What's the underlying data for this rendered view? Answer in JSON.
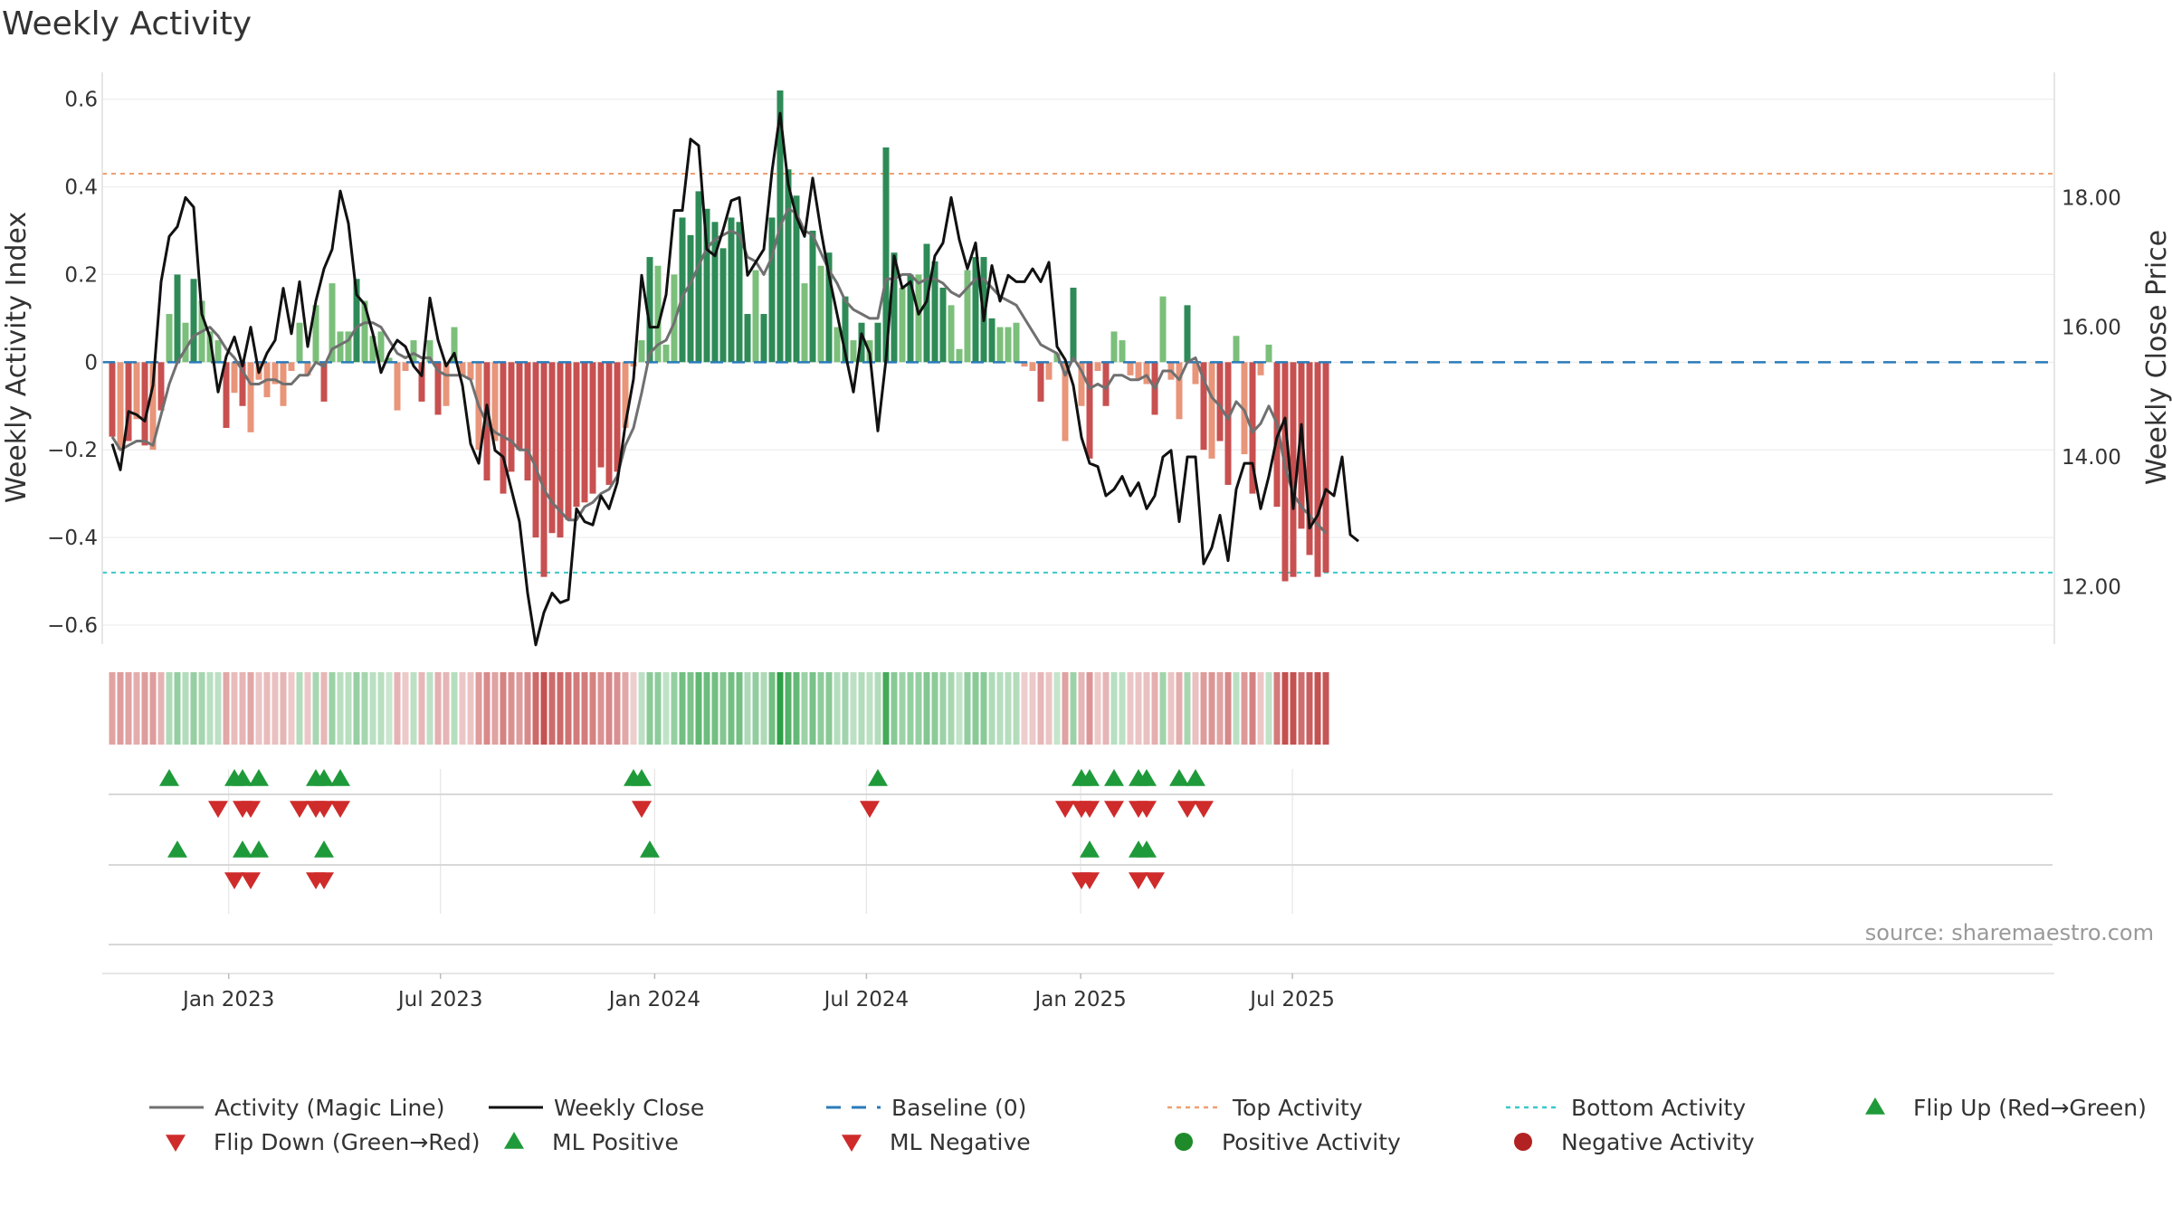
{
  "chart_data": {
    "type": "bar+line",
    "title": "Weekly Activity",
    "ylabel": "Weekly Activity Index",
    "y2label": "Weekly Close Price",
    "ylim": [
      -0.66,
      0.62
    ],
    "y2lim": [
      11.0,
      19.65
    ],
    "ytick_labels": [
      "0.6",
      "0.4",
      "0.2",
      "0",
      "−0.2",
      "−0.4",
      "−0.6"
    ],
    "ytick_values": [
      0.6,
      0.4,
      0.2,
      0.0,
      -0.2,
      -0.4,
      -0.6
    ],
    "y2tick_labels": [
      "18.00",
      "16.00",
      "14.00",
      "12.00"
    ],
    "y2tick_values": [
      18.0,
      16.0,
      14.0,
      12.0
    ],
    "xtick_labels": [
      "Jan 2023",
      "Jul 2023",
      "Jan 2024",
      "Jul 2024",
      "Jan 2025",
      "Jul 2025"
    ],
    "xtick_weeks": [
      14.3,
      40.3,
      66.6,
      92.6,
      118.9,
      144.9
    ],
    "top_activity": 0.43,
    "bottom_activity": -0.48,
    "baseline": 0,
    "activity": [
      -0.17,
      -0.2,
      -0.18,
      -0.13,
      -0.19,
      -0.2,
      -0.11,
      0.11,
      0.2,
      0.09,
      0.19,
      0.14,
      0.07,
      0.05,
      -0.15,
      -0.07,
      -0.1,
      -0.16,
      -0.04,
      -0.08,
      -0.05,
      -0.1,
      -0.02,
      0.09,
      -0.03,
      0.13,
      -0.09,
      0.18,
      0.07,
      0.07,
      0.19,
      0.14,
      0.06,
      0.07,
      0.01,
      -0.11,
      -0.02,
      0.05,
      -0.09,
      0.05,
      -0.12,
      -0.1,
      0.08,
      -0.03,
      -0.04,
      -0.2,
      -0.27,
      -0.18,
      -0.3,
      -0.25,
      -0.2,
      -0.27,
      -0.4,
      -0.49,
      -0.39,
      -0.4,
      -0.36,
      -0.33,
      -0.32,
      -0.3,
      -0.24,
      -0.28,
      -0.25,
      -0.15,
      -0.01,
      0.05,
      0.24,
      0.22,
      0.04,
      0.2,
      0.33,
      0.29,
      0.39,
      0.35,
      0.32,
      0.26,
      0.33,
      0.32,
      0.11,
      0.21,
      0.11,
      0.33,
      0.62,
      0.44,
      0.38,
      0.18,
      0.3,
      0.22,
      0.25,
      0.08,
      0.15,
      0.05,
      0.09,
      0.05,
      0.09,
      0.49,
      0.25,
      0.17,
      0.2,
      0.2,
      0.27,
      0.23,
      0.17,
      0.13,
      0.03,
      0.21,
      0.24,
      0.24,
      0.1,
      0.08,
      0.08,
      0.09,
      -0.01,
      -0.02,
      -0.09,
      -0.04,
      0.02,
      -0.18,
      0.17,
      -0.1,
      -0.22,
      -0.02,
      -0.1,
      0.07,
      0.05,
      -0.03,
      -0.04,
      -0.05,
      -0.12,
      0.15,
      -0.04,
      -0.13,
      0.13,
      -0.05,
      -0.2,
      -0.22,
      -0.18,
      -0.28,
      0.06,
      -0.21,
      -0.3,
      -0.03,
      0.04,
      -0.33,
      -0.5,
      -0.49,
      -0.38,
      -0.44,
      -0.49,
      -0.48
    ],
    "magic_line": [
      -0.17,
      -0.2,
      -0.19,
      -0.18,
      -0.18,
      -0.19,
      -0.12,
      -0.05,
      0.0,
      0.03,
      0.06,
      0.07,
      0.08,
      0.06,
      0.03,
      0.01,
      -0.02,
      -0.05,
      -0.05,
      -0.04,
      -0.04,
      -0.05,
      -0.05,
      -0.03,
      -0.03,
      0.0,
      -0.01,
      0.03,
      0.04,
      0.05,
      0.08,
      0.09,
      0.09,
      0.08,
      0.05,
      0.02,
      0.01,
      0.02,
      0.01,
      0.01,
      -0.02,
      -0.03,
      -0.03,
      -0.03,
      -0.04,
      -0.1,
      -0.14,
      -0.16,
      -0.17,
      -0.18,
      -0.2,
      -0.2,
      -0.24,
      -0.29,
      -0.32,
      -0.34,
      -0.36,
      -0.36,
      -0.33,
      -0.32,
      -0.3,
      -0.29,
      -0.26,
      -0.19,
      -0.15,
      -0.07,
      0.02,
      0.04,
      0.05,
      0.09,
      0.15,
      0.18,
      0.22,
      0.26,
      0.28,
      0.29,
      0.3,
      0.29,
      0.24,
      0.23,
      0.2,
      0.24,
      0.31,
      0.35,
      0.34,
      0.3,
      0.29,
      0.25,
      0.21,
      0.18,
      0.14,
      0.12,
      0.11,
      0.1,
      0.1,
      0.19,
      0.19,
      0.2,
      0.2,
      0.18,
      0.19,
      0.19,
      0.18,
      0.16,
      0.15,
      0.17,
      0.19,
      0.19,
      0.17,
      0.15,
      0.14,
      0.13,
      0.1,
      0.07,
      0.04,
      0.03,
      0.02,
      -0.03,
      0.01,
      -0.02,
      -0.06,
      -0.05,
      -0.06,
      -0.03,
      -0.03,
      -0.04,
      -0.04,
      -0.03,
      -0.06,
      -0.02,
      -0.02,
      -0.04,
      0.0,
      0.01,
      -0.04,
      -0.08,
      -0.1,
      -0.13,
      -0.09,
      -0.11,
      -0.16,
      -0.14,
      -0.1,
      -0.14,
      -0.24,
      -0.3,
      -0.33,
      -0.35,
      -0.37,
      -0.39
    ],
    "weekly_close": [
      14.2,
      13.8,
      14.7,
      14.65,
      14.55,
      15.1,
      16.7,
      17.4,
      17.55,
      18.0,
      17.85,
      16.2,
      15.85,
      15.0,
      15.55,
      15.85,
      15.4,
      16.0,
      15.3,
      15.6,
      15.8,
      16.6,
      15.9,
      16.7,
      15.7,
      16.4,
      16.9,
      17.2,
      18.1,
      17.6,
      16.5,
      16.35,
      15.9,
      15.3,
      15.6,
      15.8,
      15.7,
      15.4,
      15.25,
      16.45,
      15.8,
      15.4,
      15.6,
      15.1,
      14.2,
      13.9,
      14.8,
      14.1,
      14.0,
      13.5,
      13.0,
      11.9,
      11.1,
      11.6,
      11.9,
      11.75,
      11.8,
      13.2,
      13.0,
      12.95,
      13.4,
      13.2,
      13.6,
      14.5,
      15.2,
      16.8,
      16.0,
      16.0,
      16.5,
      17.8,
      17.8,
      18.9,
      18.8,
      17.2,
      17.1,
      17.5,
      17.95,
      18.0,
      16.8,
      17.0,
      17.2,
      18.4,
      19.3,
      18.2,
      17.7,
      17.4,
      18.3,
      17.5,
      16.8,
      16.2,
      15.6,
      15.0,
      15.9,
      15.6,
      14.4,
      15.5,
      17.1,
      16.6,
      16.7,
      16.2,
      16.4,
      17.1,
      17.3,
      18.0,
      17.35,
      16.9,
      17.3,
      16.1,
      16.95,
      16.4,
      16.8,
      16.7,
      16.7,
      16.9,
      16.7,
      17.0,
      15.7,
      15.5,
      15.1,
      14.3,
      13.9,
      13.85,
      13.4,
      13.5,
      13.7,
      13.4,
      13.6,
      13.2,
      13.4,
      14.0,
      14.1,
      13.0,
      14.0,
      14.0,
      12.35,
      12.6,
      13.1,
      12.4,
      13.5,
      13.9,
      13.9,
      13.2,
      13.7,
      14.3,
      14.6,
      13.2,
      14.5,
      12.9,
      13.1,
      13.5,
      13.4,
      14.0,
      12.8,
      12.7
    ]
  },
  "markers": {
    "flip_up_weeks": [
      7,
      15,
      16,
      18,
      25,
      26,
      28,
      64,
      65,
      94,
      119,
      120,
      123,
      126,
      127,
      131,
      133
    ],
    "flip_down_weeks": [
      13,
      16,
      17,
      23,
      25,
      26,
      28,
      65,
      93,
      117,
      119,
      120,
      123,
      126,
      127,
      132,
      134
    ],
    "ml_positive_weeks": [
      8,
      16,
      18,
      26,
      66,
      120,
      126,
      127
    ],
    "ml_negative_weeks": [
      15,
      17,
      25,
      26,
      119,
      120,
      126,
      128
    ]
  },
  "source_note": "source: sharemaestro.com",
  "legend": [
    {
      "label": "Activity (Magic Line)",
      "symbol": "line",
      "color": "#707070"
    },
    {
      "label": "Weekly Close",
      "symbol": "line",
      "color": "#111111"
    },
    {
      "label": "Baseline (0)",
      "symbol": "dash",
      "color": "#2b7bb9"
    },
    {
      "label": "Top Activity",
      "symbol": "dotted",
      "color": "#f0a070"
    },
    {
      "label": "Bottom Activity",
      "symbol": "dotted",
      "color": "#3cc8c8"
    },
    {
      "label": "Flip Up (Red→Green)",
      "symbol": "tri-up",
      "color": "#1f9a3a"
    },
    {
      "label": "Flip Down (Green→Red)",
      "symbol": "tri-down",
      "color": "#cf2b2b"
    },
    {
      "label": "ML Positive",
      "symbol": "tri-up",
      "color": "#1f9a3a"
    },
    {
      "label": "ML Negative",
      "symbol": "tri-down",
      "color": "#cf2b2b"
    },
    {
      "label": "Positive Activity",
      "symbol": "dot",
      "color": "#1f8a2a"
    },
    {
      "label": "Negative Activity",
      "symbol": "dot",
      "color": "#b22222"
    }
  ],
  "colors": {
    "positive_strong": "#2e8b57",
    "positive_light": "#7bbf7b",
    "negative_strong": "#c85050",
    "negative_light": "#e8957a",
    "grid": "#ececec",
    "up_marker": "#1f9a3a",
    "down_marker": "#cf2b2b"
  }
}
